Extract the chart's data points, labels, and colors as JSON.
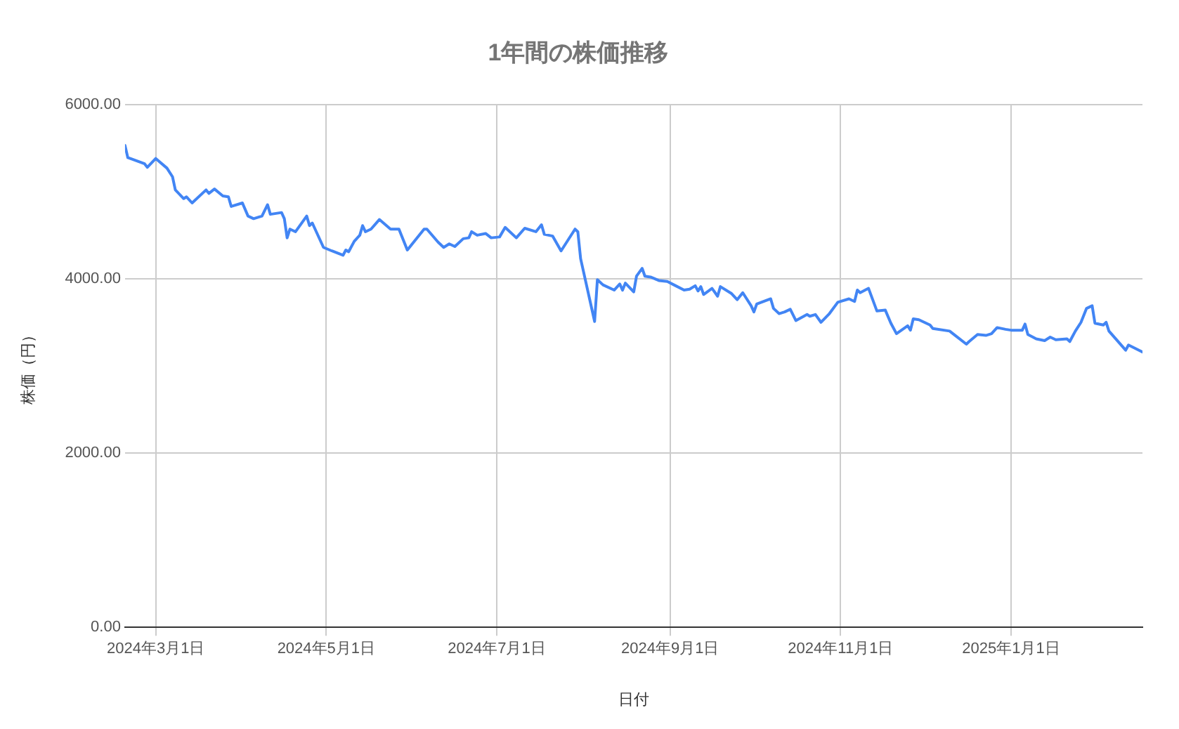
{
  "chart_data": {
    "type": "line",
    "title": "1年間の株価推移",
    "xlabel": "日付",
    "ylabel": "株価（円）",
    "x": [
      "2024-02-19",
      "2024-02-20",
      "2024-02-26",
      "2024-02-27",
      "2024-03-01",
      "2024-03-05",
      "2024-03-07",
      "2024-03-08",
      "2024-03-11",
      "2024-03-12",
      "2024-03-14",
      "2024-03-19",
      "2024-03-20",
      "2024-03-22",
      "2024-03-25",
      "2024-03-27",
      "2024-03-28",
      "2024-04-01",
      "2024-04-03",
      "2024-04-05",
      "2024-04-08",
      "2024-04-10",
      "2024-04-11",
      "2024-04-15",
      "2024-04-16",
      "2024-04-17",
      "2024-04-18",
      "2024-04-20",
      "2024-04-24",
      "2024-04-25",
      "2024-04-26",
      "2024-04-30",
      "2024-05-03",
      "2024-05-07",
      "2024-05-08",
      "2024-05-09",
      "2024-05-11",
      "2024-05-13",
      "2024-05-14",
      "2024-05-15",
      "2024-05-17",
      "2024-05-20",
      "2024-05-24",
      "2024-05-27",
      "2024-05-30",
      "2024-06-05",
      "2024-06-06",
      "2024-06-10",
      "2024-06-12",
      "2024-06-14",
      "2024-06-16",
      "2024-06-19",
      "2024-06-21",
      "2024-06-22",
      "2024-06-24",
      "2024-06-27",
      "2024-06-29",
      "2024-07-02",
      "2024-07-04",
      "2024-07-08",
      "2024-07-11",
      "2024-07-15",
      "2024-07-17",
      "2024-07-18",
      "2024-07-21",
      "2024-07-24",
      "2024-07-29",
      "2024-07-30",
      "2024-07-31",
      "2024-08-05",
      "2024-08-06",
      "2024-08-08",
      "2024-08-12",
      "2024-08-14",
      "2024-08-15",
      "2024-08-16",
      "2024-08-19",
      "2024-08-20",
      "2024-08-22",
      "2024-08-23",
      "2024-08-25",
      "2024-08-28",
      "2024-08-31",
      "2024-09-03",
      "2024-09-06",
      "2024-09-08",
      "2024-09-10",
      "2024-09-11",
      "2024-09-12",
      "2024-09-13",
      "2024-09-16",
      "2024-09-18",
      "2024-09-19",
      "2024-09-23",
      "2024-09-25",
      "2024-09-27",
      "2024-09-30",
      "2024-10-01",
      "2024-10-02",
      "2024-10-07",
      "2024-10-08",
      "2024-10-10",
      "2024-10-12",
      "2024-10-14",
      "2024-10-16",
      "2024-10-20",
      "2024-10-21",
      "2024-10-23",
      "2024-10-25",
      "2024-10-28",
      "2024-10-31",
      "2024-11-04",
      "2024-11-06",
      "2024-11-07",
      "2024-11-08",
      "2024-11-11",
      "2024-11-14",
      "2024-11-17",
      "2024-11-19",
      "2024-11-21",
      "2024-11-25",
      "2024-11-26",
      "2024-11-27",
      "2024-11-29",
      "2024-12-03",
      "2024-12-04",
      "2024-12-10",
      "2024-12-12",
      "2024-12-16",
      "2024-12-17",
      "2024-12-20",
      "2024-12-23",
      "2024-12-25",
      "2024-12-27",
      "2024-12-30",
      "2025-01-01",
      "2025-01-05",
      "2025-01-06",
      "2025-01-07",
      "2025-01-10",
      "2025-01-13",
      "2025-01-15",
      "2025-01-17",
      "2025-01-21",
      "2025-01-22",
      "2025-01-24",
      "2025-01-26",
      "2025-01-28",
      "2025-01-30",
      "2025-01-31",
      "2025-02-03",
      "2025-02-04",
      "2025-02-05",
      "2025-02-11",
      "2025-02-12",
      "2025-02-17"
    ],
    "series": [
      {
        "color": "#4285f4",
        "values": [
          5530,
          5390,
          5320,
          5280,
          5380,
          5270,
          5170,
          5020,
          4920,
          4940,
          4870,
          5020,
          4980,
          5030,
          4950,
          4940,
          4830,
          4870,
          4720,
          4690,
          4720,
          4850,
          4740,
          4760,
          4690,
          4470,
          4570,
          4540,
          4720,
          4610,
          4640,
          4360,
          4320,
          4270,
          4330,
          4310,
          4430,
          4500,
          4610,
          4540,
          4570,
          4680,
          4570,
          4570,
          4330,
          4570,
          4570,
          4420,
          4360,
          4400,
          4370,
          4460,
          4470,
          4540,
          4500,
          4520,
          4470,
          4480,
          4590,
          4470,
          4580,
          4540,
          4620,
          4510,
          4490,
          4320,
          4570,
          4540,
          4230,
          3510,
          3990,
          3930,
          3870,
          3940,
          3870,
          3950,
          3850,
          4030,
          4120,
          4030,
          4020,
          3980,
          3970,
          3920,
          3870,
          3880,
          3920,
          3860,
          3910,
          3820,
          3890,
          3800,
          3910,
          3830,
          3760,
          3840,
          3690,
          3620,
          3710,
          3770,
          3660,
          3600,
          3620,
          3650,
          3520,
          3590,
          3570,
          3590,
          3500,
          3600,
          3730,
          3770,
          3740,
          3870,
          3840,
          3890,
          3630,
          3640,
          3490,
          3370,
          3460,
          3410,
          3540,
          3530,
          3470,
          3430,
          3400,
          3350,
          3250,
          3280,
          3360,
          3350,
          3370,
          3440,
          3420,
          3410,
          3410,
          3480,
          3360,
          3310,
          3290,
          3330,
          3300,
          3310,
          3280,
          3400,
          3500,
          3660,
          3690,
          3490,
          3470,
          3500,
          3400,
          3180,
          3240,
          3160
        ]
      }
    ],
    "xlim": [
      "2024-02-19",
      "2025-02-17"
    ],
    "xticks": [
      {
        "value": "2024-03-01",
        "label": "2024年3月1日"
      },
      {
        "value": "2024-05-01",
        "label": "2024年5月1日"
      },
      {
        "value": "2024-07-01",
        "label": "2024年7月1日"
      },
      {
        "value": "2024-09-01",
        "label": "2024年9月1日"
      },
      {
        "value": "2024-11-01",
        "label": "2024年11月1日"
      },
      {
        "value": "2025-01-01",
        "label": "2025年1月1日"
      }
    ],
    "ylim": [
      0,
      6000
    ],
    "yticks": [
      {
        "value": 0,
        "label": "0.00"
      },
      {
        "value": 2000,
        "label": "2000.00"
      },
      {
        "value": 4000,
        "label": "4000.00"
      },
      {
        "value": 6000,
        "label": "6000.00"
      }
    ],
    "grid": true,
    "legend": false,
    "marker": "none",
    "line_style": "solid"
  }
}
